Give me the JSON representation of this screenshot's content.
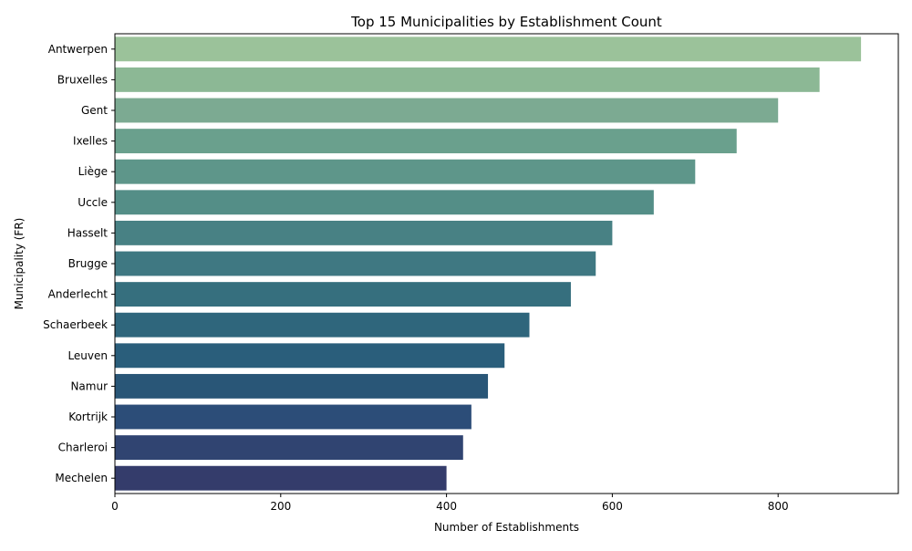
{
  "chart_data": {
    "type": "bar",
    "orientation": "horizontal",
    "title": "Top 15 Municipalities by Establishment Count",
    "xlabel": "Number of Establishments",
    "ylabel": "Municipality (FR)",
    "xlim": [
      0,
      945
    ],
    "xticks": [
      0,
      200,
      400,
      600,
      800
    ],
    "grid": false,
    "legend": "none",
    "categories": [
      "Antwerpen",
      "Bruxelles",
      "Gent",
      "Ixelles",
      "Liège",
      "Uccle",
      "Hasselt",
      "Brugge",
      "Anderlecht",
      "Schaerbeek",
      "Leuven",
      "Namur",
      "Kortrijk",
      "Charleroi",
      "Mechelen"
    ],
    "values": [
      900,
      850,
      800,
      750,
      700,
      650,
      600,
      580,
      550,
      500,
      470,
      450,
      430,
      420,
      400
    ],
    "colors": [
      "#9bc29a",
      "#8cb895",
      "#7caa92",
      "#6aa08d",
      "#5e968a",
      "#548e87",
      "#488184",
      "#3f7882",
      "#366f7e",
      "#2f667c",
      "#2a5e7b",
      "#295677",
      "#2c4d78",
      "#304471",
      "#343c6b"
    ]
  }
}
